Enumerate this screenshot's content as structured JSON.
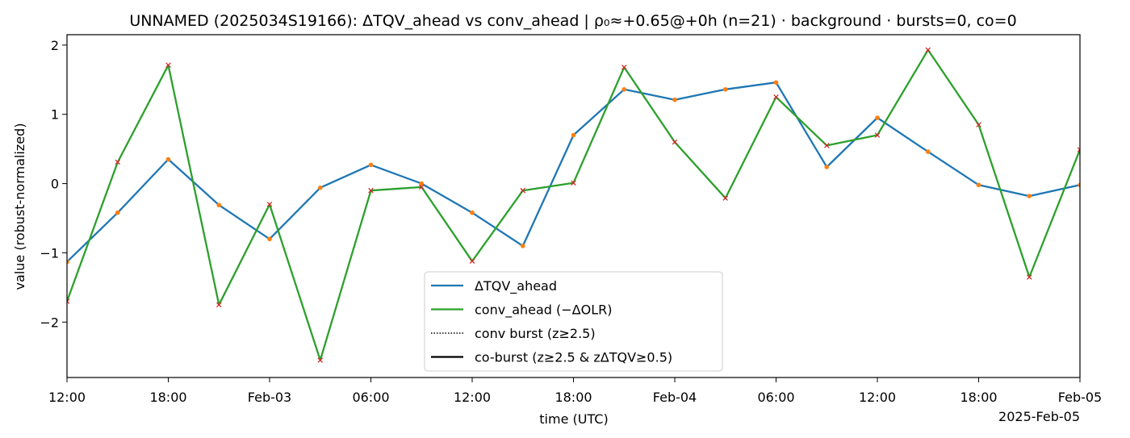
{
  "chart_data": {
    "type": "line",
    "title": "UNNAMED (2025034S19166): ΔTQV_ahead vs conv_ahead | ρ₀≈+0.65@+0h (n=21) · background · bursts=0, co=0",
    "xlabel": "time (UTC)",
    "ylabel": "value (robust-normalized)",
    "x_offset_label": "2025-Feb-05",
    "x": [
      "2025-02-02 12:00",
      "2025-02-02 15:00",
      "2025-02-02 18:00",
      "2025-02-02 21:00",
      "2025-02-03 00:00",
      "2025-02-03 03:00",
      "2025-02-03 06:00",
      "2025-02-03 09:00",
      "2025-02-03 12:00",
      "2025-02-03 15:00",
      "2025-02-03 18:00",
      "2025-02-03 21:00",
      "2025-02-04 00:00",
      "2025-02-04 03:00",
      "2025-02-04 06:00",
      "2025-02-04 09:00",
      "2025-02-04 12:00",
      "2025-02-04 15:00",
      "2025-02-04 18:00",
      "2025-02-04 21:00",
      "2025-02-05 00:00"
    ],
    "xlim": [
      "2025-02-02 12:00",
      "2025-02-05 00:00"
    ],
    "ylim": [
      -2.8,
      2.15
    ],
    "x_ticks": [
      {
        "t": "2025-02-02 12:00",
        "label": "12:00"
      },
      {
        "t": "2025-02-02 18:00",
        "label": "18:00"
      },
      {
        "t": "2025-02-03 00:00",
        "label": "Feb-03"
      },
      {
        "t": "2025-02-03 06:00",
        "label": "06:00"
      },
      {
        "t": "2025-02-03 12:00",
        "label": "12:00"
      },
      {
        "t": "2025-02-03 18:00",
        "label": "18:00"
      },
      {
        "t": "2025-02-04 00:00",
        "label": "Feb-04"
      },
      {
        "t": "2025-02-04 06:00",
        "label": "06:00"
      },
      {
        "t": "2025-02-04 12:00",
        "label": "12:00"
      },
      {
        "t": "2025-02-04 18:00",
        "label": "18:00"
      },
      {
        "t": "2025-02-05 00:00",
        "label": "Feb-05"
      }
    ],
    "y_ticks": [
      {
        "v": 2,
        "label": "2"
      },
      {
        "v": 1,
        "label": "1"
      },
      {
        "v": 0,
        "label": "0"
      },
      {
        "v": -1,
        "label": "−1"
      },
      {
        "v": -2,
        "label": "−2"
      }
    ],
    "grid": false,
    "legend_position": "bottom-center",
    "series": [
      {
        "name": "ΔTQV_ahead",
        "color": "#1f77b4",
        "marker": "dot",
        "marker_color": "#ff7f0e",
        "values": [
          -1.13,
          -0.42,
          0.35,
          -0.31,
          -0.8,
          -0.06,
          0.27,
          0.0,
          -0.42,
          -0.9,
          0.7,
          1.36,
          1.21,
          1.36,
          1.46,
          0.24,
          0.95,
          0.46,
          -0.02,
          -0.18,
          -0.02
        ]
      },
      {
        "name": "conv_ahead (−ΔOLR)",
        "color": "#2ca02c",
        "marker": "x",
        "marker_color": "#d62728",
        "values": [
          -1.7,
          0.31,
          1.71,
          -1.75,
          -0.3,
          -2.55,
          -0.1,
          -0.05,
          -1.12,
          -0.1,
          0.01,
          1.68,
          0.6,
          -0.21,
          1.25,
          0.55,
          0.7,
          1.93,
          0.85,
          -1.35,
          0.49
        ]
      }
    ],
    "legend": [
      {
        "label": "ΔTQV_ahead",
        "style": "solid",
        "color": "#1f77b4"
      },
      {
        "label": "conv_ahead (−ΔOLR)",
        "style": "solid",
        "color": "#2ca02c"
      },
      {
        "label": "conv burst (z≥2.5)",
        "style": "dotted",
        "color": "#000000"
      },
      {
        "label": "co-burst (z≥2.5 & zΔTQV≥0.5)",
        "style": "solid",
        "color": "#000000"
      }
    ]
  }
}
